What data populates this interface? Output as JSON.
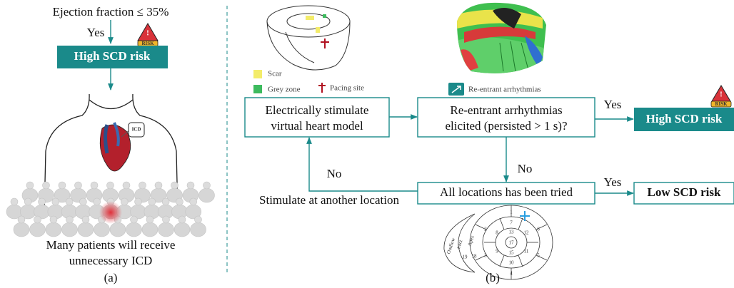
{
  "panel_a": {
    "criterion": "Ejection fraction ≤ 35%",
    "yes": "Yes",
    "result": "High SCD risk",
    "risk_badge": "RISK",
    "device": "ICD",
    "caption": [
      "Many patients will receive",
      "unnecessary ICD"
    ],
    "label": "(a)"
  },
  "panel_b": {
    "legend": {
      "scar": "Scar",
      "grey_zone": "Grey zone",
      "pacing_site": "Pacing site",
      "arrhythmia": "Re-entrant arrhythmias"
    },
    "nodes": [
      {
        "label": [
          "Electrically stimulate",
          "virtual heart model"
        ]
      },
      {
        "label": [
          "Re-entrant arrhythmias",
          "elicited (persisted > 1 s)?"
        ]
      },
      {
        "label": "High SCD risk"
      },
      {
        "label": "All locations has been tried"
      },
      {
        "label": "Low SCD risk"
      }
    ],
    "edges": [
      {
        "label": "Yes"
      },
      {
        "label": "No"
      },
      {
        "label": "Yes"
      },
      {
        "label": "No"
      }
    ],
    "loop_note": "Stimulate at another location",
    "risk_badge": "RISK",
    "bullseye": {
      "segments": [
        "1",
        "7",
        "13",
        "2",
        "8",
        "17",
        "12",
        "6",
        "3",
        "9",
        "15",
        "11",
        "5",
        "10",
        "4",
        "18",
        "19"
      ],
      "regions": [
        "Outflow",
        "tract",
        "Apex"
      ]
    },
    "label": "(b)"
  }
}
